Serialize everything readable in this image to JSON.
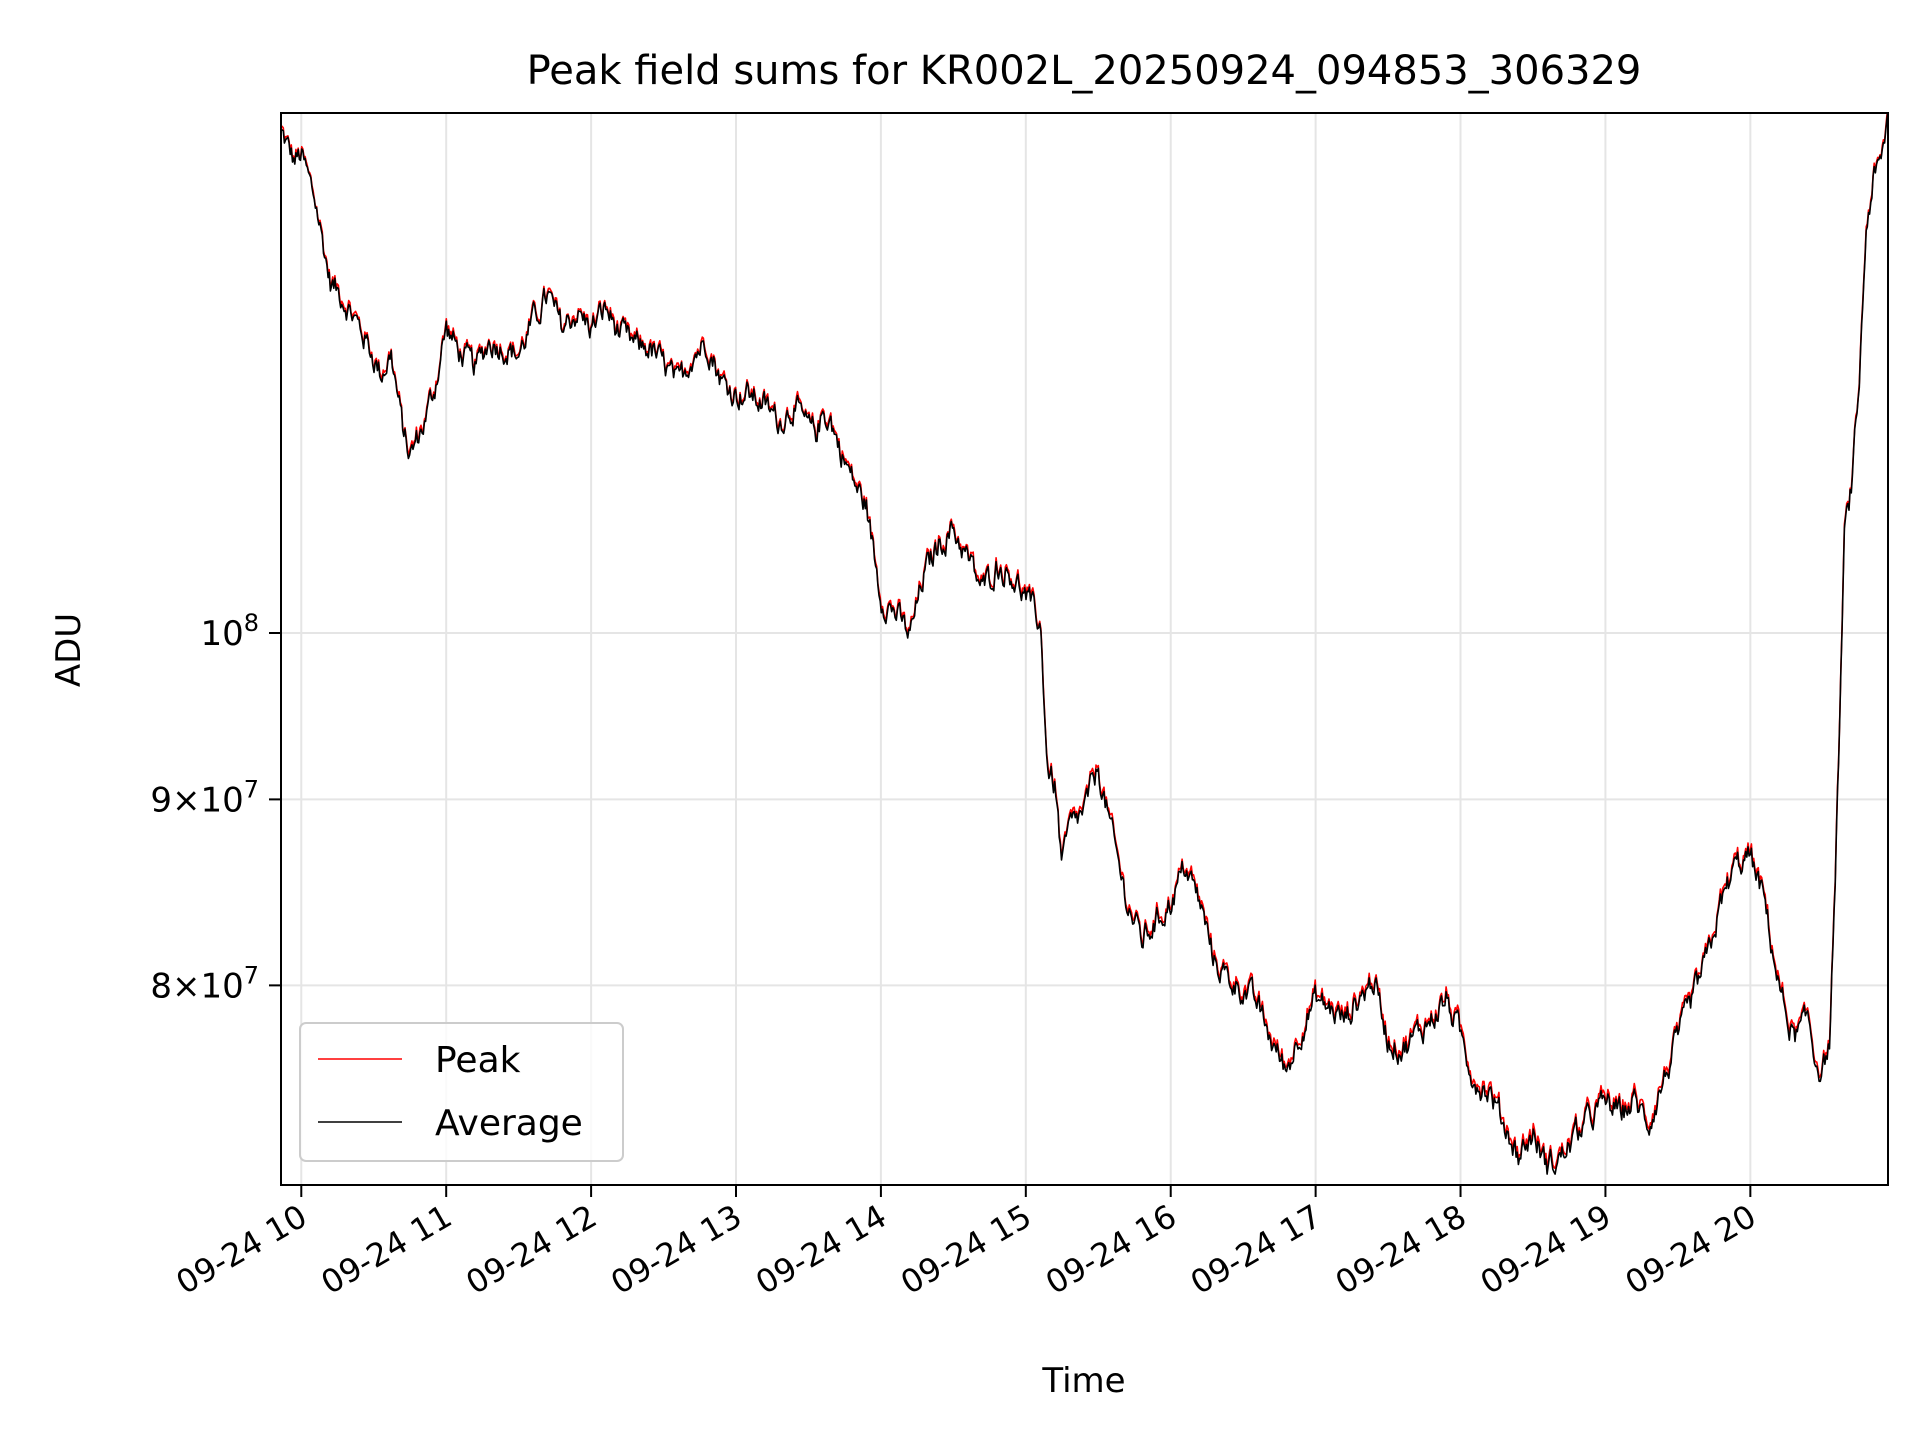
{
  "chart_data": {
    "type": "line",
    "title": "Peak field sums for KR002L_20250924_094853_306329",
    "xlabel": "Time",
    "ylabel": "ADU",
    "yscale": "log",
    "ylim": [
      70500000,
      139000000
    ],
    "xlim_hours": [
      9.86,
      20.95
    ],
    "grid": true,
    "legend_position": "lower-left",
    "x_tick_labels": [
      "09-24 10",
      "09-24 11",
      "09-24 12",
      "09-24 13",
      "09-24 14",
      "09-24 15",
      "09-24 16",
      "09-24 17",
      "09-24 18",
      "09-24 19",
      "09-24 20"
    ],
    "x_tick_hours": [
      10,
      11,
      12,
      13,
      14,
      15,
      16,
      17,
      18,
      19,
      20
    ],
    "y_ticks": [
      {
        "value": 100000000,
        "mantissa": "",
        "exponent": "8"
      },
      {
        "value": 90000000,
        "mantissa": "9",
        "exponent": "7"
      },
      {
        "value": 80000000,
        "mantissa": "8",
        "exponent": "7"
      }
    ],
    "key_points_hours": [
      9.86,
      9.95,
      10.0,
      10.1,
      10.2,
      10.28,
      10.35,
      10.45,
      10.55,
      10.62,
      10.7,
      10.75,
      10.85,
      10.92,
      11.0,
      11.1,
      11.2,
      11.3,
      11.4,
      11.5,
      11.6,
      11.7,
      11.8,
      11.9,
      12.0,
      12.1,
      12.2,
      12.3,
      12.4,
      12.5,
      12.6,
      12.7,
      12.8,
      12.9,
      13.0,
      13.1,
      13.2,
      13.3,
      13.4,
      13.5,
      13.55,
      13.6,
      13.65,
      13.7,
      13.8,
      13.9,
      14.0,
      14.1,
      14.2,
      14.3,
      14.4,
      14.5,
      14.6,
      14.7,
      14.8,
      14.9,
      15.0,
      15.1,
      15.15,
      15.2,
      15.25,
      15.3,
      15.4,
      15.5,
      15.6,
      15.7,
      15.8,
      15.9,
      16.0,
      16.1,
      16.2,
      16.3,
      16.4,
      16.5,
      16.6,
      16.7,
      16.8,
      16.9,
      17.0,
      17.1,
      17.2,
      17.3,
      17.4,
      17.5,
      17.6,
      17.7,
      17.8,
      17.9,
      18.0,
      18.1,
      18.2,
      18.3,
      18.4,
      18.5,
      18.6,
      18.7,
      18.8,
      18.9,
      19.0,
      19.1,
      19.2,
      19.3,
      19.4,
      19.5,
      19.6,
      19.7,
      19.8,
      19.9,
      20.0,
      20.1,
      20.2,
      20.3,
      20.4,
      20.45,
      20.5,
      20.55,
      20.6,
      20.65,
      20.7,
      20.75,
      20.8,
      20.85,
      20.9,
      20.95
    ],
    "series": [
      {
        "name": "Peak",
        "color": "#ff0000",
        "values": [
          137500000,
          135000000,
          135500000,
          131500000,
          125000000,
          124000000,
          122600000,
          120500000,
          118000000,
          119500000,
          114000000,
          112000000,
          114500000,
          117000000,
          121500000,
          119500000,
          118500000,
          120500000,
          120000000,
          119500000,
          122000000,
          124000000,
          121500000,
          122700000,
          121500000,
          123000000,
          121000000,
          120200000,
          120000000,
          118700000,
          117200000,
          119500000,
          120500000,
          117500000,
          116500000,
          116500000,
          115700000,
          114500000,
          115700000,
          114000000,
          113700000,
          115000000,
          114800000,
          113000000,
          110500000,
          108500000,
          102500000,
          101500000,
          100000000,
          104000000,
          106000000,
          107000000,
          105000000,
          103000000,
          104500000,
          104000000,
          102500000,
          100800000,
          92000000,
          91000000,
          86500000,
          88500000,
          89500000,
          92000000,
          88000000,
          84500000,
          82500000,
          83500000,
          84500000,
          86500000,
          84500000,
          81500000,
          80500000,
          80000000,
          79200000,
          77300000,
          76000000,
          78000000,
          79500000,
          79000000,
          78500000,
          79500000,
          80500000,
          77500000,
          77000000,
          77800000,
          78500000,
          79500000,
          77700000,
          75500000,
          75000000,
          73500000,
          72000000,
          73000000,
          71500000,
          72000000,
          73000000,
          73800000,
          74500000,
          74000000,
          74500000,
          73500000,
          75500000,
          77500000,
          79500000,
          81500000,
          84500000,
          86500000,
          87000000,
          84500000,
          80000000,
          77500000,
          78500000,
          76500000,
          76000000,
          77500000,
          89500000,
          106500000,
          110000000,
          117000000,
          129500000,
          133500000,
          134500000,
          139000000
        ]
      },
      {
        "name": "Average",
        "color": "#000000",
        "values": [
          137300000,
          134800000,
          135300000,
          131300000,
          124800000,
          123800000,
          122400000,
          120300000,
          117800000,
          119300000,
          113800000,
          111800000,
          114300000,
          116800000,
          121300000,
          119300000,
          118300000,
          120300000,
          119800000,
          119300000,
          121800000,
          123800000,
          121300000,
          122500000,
          121300000,
          122800000,
          120800000,
          120000000,
          119800000,
          118500000,
          117000000,
          119300000,
          120300000,
          117300000,
          116300000,
          116300000,
          115500000,
          114300000,
          115500000,
          113800000,
          113500000,
          114800000,
          114600000,
          112800000,
          110300000,
          108300000,
          102300000,
          101300000,
          99800000,
          103800000,
          105800000,
          106800000,
          104800000,
          102800000,
          104300000,
          103800000,
          102300000,
          100600000,
          91800000,
          90800000,
          86300000,
          88300000,
          89300000,
          91800000,
          87800000,
          84300000,
          82300000,
          83300000,
          84300000,
          86300000,
          84300000,
          81300000,
          80300000,
          79800000,
          79000000,
          77100000,
          75800000,
          77800000,
          79300000,
          78800000,
          78300000,
          79300000,
          80300000,
          77300000,
          76800000,
          77600000,
          78300000,
          79300000,
          77500000,
          75300000,
          74800000,
          73300000,
          71800000,
          72800000,
          71300000,
          71800000,
          72800000,
          73600000,
          74300000,
          73800000,
          74300000,
          73300000,
          75300000,
          77300000,
          79300000,
          81300000,
          84300000,
          86300000,
          86800000,
          84300000,
          79800000,
          77300000,
          78300000,
          76300000,
          75800000,
          77300000,
          89300000,
          106300000,
          109800000,
          116800000,
          129300000,
          133300000,
          134300000,
          138800000
        ]
      }
    ]
  }
}
